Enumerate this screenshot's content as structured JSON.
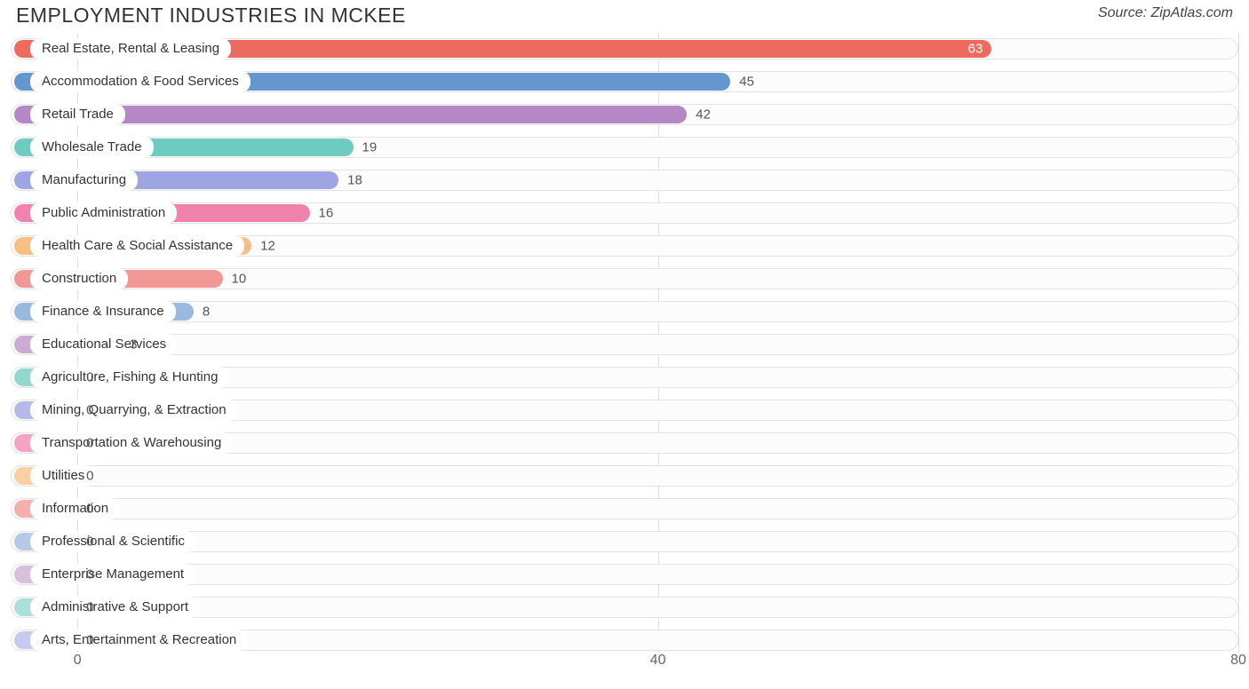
{
  "header": {
    "title": "EMPLOYMENT INDUSTRIES IN MCKEE",
    "source_prefix": "Source: ",
    "source_name": "ZipAtlas.com"
  },
  "chart": {
    "type": "bar-horizontal",
    "x_min": -4.6,
    "x_max": 80,
    "x_ticks": [
      0,
      40,
      80
    ],
    "bar_min_value": -4.6,
    "track_border_color": "#e3e3e3",
    "track_bg_color": "#fcfcfc",
    "grid_color": "#dddddd",
    "label_fontsize": 15,
    "tick_fontsize": 16,
    "title_fontsize": 23,
    "rows": [
      {
        "label": "Real Estate, Rental & Leasing",
        "value": 63,
        "color": "#ed6a5e",
        "value_inside": true
      },
      {
        "label": "Accommodation & Food Services",
        "value": 45,
        "color": "#6596d0",
        "value_inside": false
      },
      {
        "label": "Retail Trade",
        "value": 42,
        "color": "#b587c6",
        "value_inside": false
      },
      {
        "label": "Wholesale Trade",
        "value": 19,
        "color": "#6ecbc0",
        "value_inside": false
      },
      {
        "label": "Manufacturing",
        "value": 18,
        "color": "#9fa4e3",
        "value_inside": false
      },
      {
        "label": "Public Administration",
        "value": 16,
        "color": "#f082ad",
        "value_inside": false
      },
      {
        "label": "Health Care & Social Assistance",
        "value": 12,
        "color": "#f7bf84",
        "value_inside": false
      },
      {
        "label": "Construction",
        "value": 10,
        "color": "#f19794",
        "value_inside": false
      },
      {
        "label": "Finance & Insurance",
        "value": 8,
        "color": "#9ab9de",
        "value_inside": false
      },
      {
        "label": "Educational Services",
        "value": 3,
        "color": "#c9abd6",
        "value_inside": false
      },
      {
        "label": "Agriculture, Fishing & Hunting",
        "value": 0,
        "color": "#94d7cf",
        "value_inside": false
      },
      {
        "label": "Mining, Quarrying, & Extraction",
        "value": 0,
        "color": "#b6baea",
        "value_inside": false
      },
      {
        "label": "Transportation & Warehousing",
        "value": 0,
        "color": "#f4a4c2",
        "value_inside": false
      },
      {
        "label": "Utilities",
        "value": 0,
        "color": "#f9cfa3",
        "value_inside": false
      },
      {
        "label": "Information",
        "value": 0,
        "color": "#f4aeab",
        "value_inside": false
      },
      {
        "label": "Professional & Scientific",
        "value": 0,
        "color": "#b4cae6",
        "value_inside": false
      },
      {
        "label": "Enterprise Management",
        "value": 0,
        "color": "#d6c0de",
        "value_inside": false
      },
      {
        "label": "Administrative & Support",
        "value": 0,
        "color": "#abdfd9",
        "value_inside": false
      },
      {
        "label": "Arts, Entertainment & Recreation",
        "value": 0,
        "color": "#c7caef",
        "value_inside": false
      }
    ]
  }
}
